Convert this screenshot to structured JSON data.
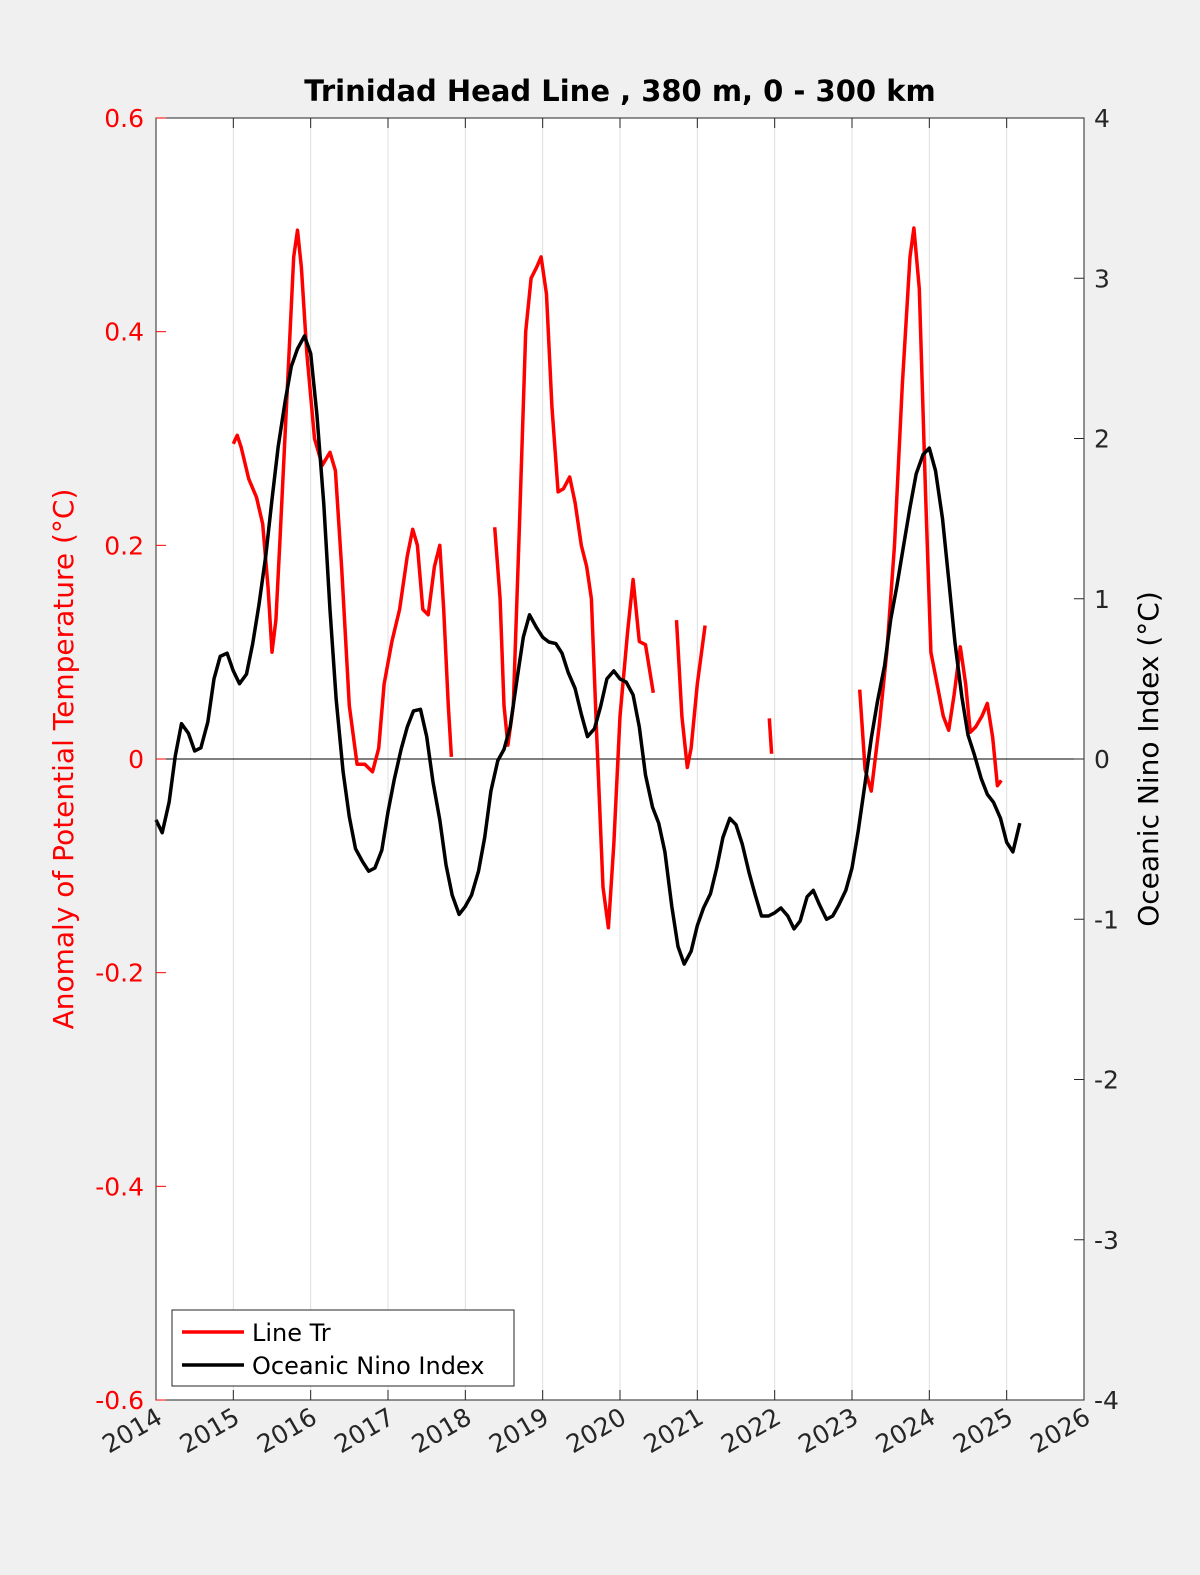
{
  "chart_data": {
    "type": "line",
    "title": "Trinidad Head Line , 380 m, 0 - 300 km",
    "ylabel_left": "Anomaly of Potential Temperature (°C)",
    "ylabel_right": "Oceanic Nino Index (°C)",
    "xlim": [
      2014,
      2026
    ],
    "ylim_left": [
      -0.6,
      0.6
    ],
    "ylim_right": [
      -4,
      4
    ],
    "x_ticks": [
      2014,
      2015,
      2016,
      2017,
      2018,
      2019,
      2020,
      2021,
      2022,
      2023,
      2024,
      2025,
      2026
    ],
    "x_tick_labels": [
      "2014",
      "2015",
      "2016",
      "2017",
      "2018",
      "2019",
      "2020",
      "2021",
      "2022",
      "2023",
      "2024",
      "2025",
      "2026"
    ],
    "y_ticks_left": [
      0.6,
      0.4,
      0.2,
      0,
      -0.2,
      -0.4,
      -0.6
    ],
    "y_tick_labels_left": [
      "0.6",
      "0.4",
      "0.2",
      "0",
      "-0.2",
      "-0.4",
      "-0.6"
    ],
    "y_ticks_right": [
      4,
      3,
      2,
      1,
      0,
      -1,
      -2,
      -3,
      -4
    ],
    "y_tick_labels_right": [
      "4",
      "3",
      "2",
      "1",
      "0",
      "-1",
      "-2",
      "-3",
      "-4"
    ],
    "grid": "vertical",
    "legend_position": "bottom-left",
    "colors": {
      "line_tr": "#ff0000",
      "oni": "#000000",
      "left_axis": "#ff0000",
      "right_axis": "#000000"
    },
    "legend": [
      "Line Tr",
      "Oceanic Nino Index"
    ],
    "series": [
      {
        "name": "Line Tr",
        "axis": "left",
        "segments": [
          [
            [
              2015.0,
              0.295
            ],
            [
              2015.05,
              0.303
            ],
            [
              2015.1,
              0.292
            ],
            [
              2015.2,
              0.262
            ],
            [
              2015.3,
              0.245
            ],
            [
              2015.38,
              0.22
            ],
            [
              2015.45,
              0.16
            ],
            [
              2015.5,
              0.1
            ],
            [
              2015.55,
              0.13
            ],
            [
              2015.6,
              0.2
            ],
            [
              2015.7,
              0.35
            ],
            [
              2015.78,
              0.47
            ],
            [
              2015.83,
              0.495
            ],
            [
              2015.88,
              0.46
            ],
            [
              2015.95,
              0.38
            ],
            [
              2016.05,
              0.3
            ],
            [
              2016.15,
              0.275
            ],
            [
              2016.25,
              0.287
            ],
            [
              2016.32,
              0.27
            ],
            [
              2016.4,
              0.18
            ],
            [
              2016.5,
              0.05
            ],
            [
              2016.6,
              -0.005
            ],
            [
              2016.7,
              -0.005
            ],
            [
              2016.8,
              -0.012
            ],
            [
              2016.88,
              0.01
            ],
            [
              2016.95,
              0.07
            ],
            [
              2017.05,
              0.11
            ],
            [
              2017.15,
              0.14
            ],
            [
              2017.25,
              0.19
            ],
            [
              2017.32,
              0.215
            ],
            [
              2017.38,
              0.2
            ],
            [
              2017.45,
              0.14
            ],
            [
              2017.52,
              0.135
            ],
            [
              2017.6,
              0.18
            ],
            [
              2017.67,
              0.2
            ],
            [
              2017.72,
              0.14
            ],
            [
              2017.78,
              0.05
            ],
            [
              2017.82,
              0.002
            ]
          ],
          [
            [
              2018.38,
              0.217
            ],
            [
              2018.45,
              0.15
            ],
            [
              2018.5,
              0.05
            ],
            [
              2018.55,
              0.013
            ],
            [
              2018.62,
              0.05
            ],
            [
              2018.7,
              0.22
            ],
            [
              2018.78,
              0.4
            ],
            [
              2018.85,
              0.45
            ],
            [
              2018.92,
              0.46
            ],
            [
              2018.98,
              0.47
            ],
            [
              2019.05,
              0.435
            ],
            [
              2019.12,
              0.33
            ],
            [
              2019.2,
              0.25
            ],
            [
              2019.27,
              0.253
            ],
            [
              2019.35,
              0.264
            ],
            [
              2019.42,
              0.24
            ],
            [
              2019.5,
              0.2
            ],
            [
              2019.57,
              0.18
            ],
            [
              2019.63,
              0.15
            ],
            [
              2019.7,
              0.02
            ],
            [
              2019.78,
              -0.12
            ],
            [
              2019.85,
              -0.158
            ],
            [
              2019.92,
              -0.08
            ],
            [
              2020.0,
              0.04
            ],
            [
              2020.1,
              0.12
            ],
            [
              2020.17,
              0.168
            ],
            [
              2020.25,
              0.11
            ],
            [
              2020.33,
              0.107
            ],
            [
              2020.43,
              0.062
            ]
          ],
          [
            [
              2020.73,
              0.13
            ],
            [
              2020.8,
              0.04
            ],
            [
              2020.87,
              -0.008
            ],
            [
              2020.92,
              0.01
            ],
            [
              2021.0,
              0.07
            ],
            [
              2021.1,
              0.125
            ]
          ],
          [
            [
              2021.93,
              0.038
            ],
            [
              2021.96,
              0.005
            ]
          ],
          [
            [
              2023.1,
              0.065
            ],
            [
              2023.17,
              -0.01
            ],
            [
              2023.25,
              -0.03
            ],
            [
              2023.35,
              0.03
            ],
            [
              2023.45,
              0.1
            ],
            [
              2023.55,
              0.2
            ],
            [
              2023.65,
              0.35
            ],
            [
              2023.75,
              0.47
            ],
            [
              2023.8,
              0.497
            ],
            [
              2023.87,
              0.44
            ],
            [
              2023.95,
              0.25
            ],
            [
              2024.02,
              0.1
            ],
            [
              2024.1,
              0.07
            ],
            [
              2024.18,
              0.04
            ],
            [
              2024.25,
              0.027
            ],
            [
              2024.32,
              0.06
            ],
            [
              2024.4,
              0.105
            ],
            [
              2024.47,
              0.07
            ],
            [
              2024.53,
              0.025
            ],
            [
              2024.6,
              0.03
            ],
            [
              2024.68,
              0.04
            ],
            [
              2024.75,
              0.052
            ],
            [
              2024.82,
              0.02
            ],
            [
              2024.88,
              -0.025
            ],
            [
              2024.93,
              -0.02
            ]
          ]
        ]
      },
      {
        "name": "Oceanic Nino Index",
        "axis": "right",
        "segments": [
          [
            [
              2014.0,
              -0.38
            ],
            [
              2014.08,
              -0.46
            ],
            [
              2014.17,
              -0.27
            ],
            [
              2014.25,
              0.02
            ],
            [
              2014.33,
              0.22
            ],
            [
              2014.42,
              0.16
            ],
            [
              2014.5,
              0.05
            ],
            [
              2014.58,
              0.07
            ],
            [
              2014.67,
              0.23
            ],
            [
              2014.75,
              0.5
            ],
            [
              2014.83,
              0.64
            ],
            [
              2014.92,
              0.66
            ],
            [
              2015.0,
              0.55
            ],
            [
              2015.08,
              0.47
            ],
            [
              2015.17,
              0.53
            ],
            [
              2015.25,
              0.72
            ],
            [
              2015.33,
              0.96
            ],
            [
              2015.42,
              1.27
            ],
            [
              2015.5,
              1.62
            ],
            [
              2015.58,
              1.95
            ],
            [
              2015.67,
              2.23
            ],
            [
              2015.75,
              2.45
            ],
            [
              2015.83,
              2.56
            ],
            [
              2015.92,
              2.64
            ],
            [
              2016.0,
              2.53
            ],
            [
              2016.08,
              2.15
            ],
            [
              2016.17,
              1.59
            ],
            [
              2016.25,
              0.93
            ],
            [
              2016.33,
              0.37
            ],
            [
              2016.42,
              -0.08
            ],
            [
              2016.5,
              -0.36
            ],
            [
              2016.58,
              -0.56
            ],
            [
              2016.67,
              -0.64
            ],
            [
              2016.75,
              -0.7
            ],
            [
              2016.83,
              -0.68
            ],
            [
              2016.92,
              -0.57
            ],
            [
              2017.0,
              -0.33
            ],
            [
              2017.08,
              -0.13
            ],
            [
              2017.17,
              0.06
            ],
            [
              2017.25,
              0.2
            ],
            [
              2017.33,
              0.3
            ],
            [
              2017.42,
              0.31
            ],
            [
              2017.5,
              0.14
            ],
            [
              2017.58,
              -0.14
            ],
            [
              2017.67,
              -0.38
            ],
            [
              2017.75,
              -0.66
            ],
            [
              2017.83,
              -0.85
            ],
            [
              2017.92,
              -0.97
            ],
            [
              2018.0,
              -0.92
            ],
            [
              2018.08,
              -0.85
            ],
            [
              2018.17,
              -0.7
            ],
            [
              2018.25,
              -0.49
            ],
            [
              2018.33,
              -0.2
            ],
            [
              2018.42,
              -0.01
            ],
            [
              2018.5,
              0.06
            ],
            [
              2018.58,
              0.2
            ],
            [
              2018.67,
              0.5
            ],
            [
              2018.75,
              0.76
            ],
            [
              2018.83,
              0.9
            ],
            [
              2018.92,
              0.82
            ],
            [
              2019.0,
              0.76
            ],
            [
              2019.08,
              0.73
            ],
            [
              2019.17,
              0.72
            ],
            [
              2019.25,
              0.66
            ],
            [
              2019.33,
              0.54
            ],
            [
              2019.42,
              0.44
            ],
            [
              2019.5,
              0.28
            ],
            [
              2019.58,
              0.14
            ],
            [
              2019.67,
              0.19
            ],
            [
              2019.75,
              0.33
            ],
            [
              2019.83,
              0.5
            ],
            [
              2019.92,
              0.55
            ],
            [
              2020.0,
              0.5
            ],
            [
              2020.08,
              0.48
            ],
            [
              2020.17,
              0.4
            ],
            [
              2020.25,
              0.2
            ],
            [
              2020.33,
              -0.1
            ],
            [
              2020.42,
              -0.3
            ],
            [
              2020.5,
              -0.4
            ],
            [
              2020.58,
              -0.58
            ],
            [
              2020.67,
              -0.92
            ],
            [
              2020.75,
              -1.17
            ],
            [
              2020.83,
              -1.28
            ],
            [
              2020.92,
              -1.2
            ],
            [
              2021.0,
              -1.04
            ],
            [
              2021.08,
              -0.93
            ],
            [
              2021.17,
              -0.84
            ],
            [
              2021.25,
              -0.68
            ],
            [
              2021.33,
              -0.49
            ],
            [
              2021.42,
              -0.37
            ],
            [
              2021.5,
              -0.41
            ],
            [
              2021.58,
              -0.53
            ],
            [
              2021.67,
              -0.71
            ],
            [
              2021.75,
              -0.85
            ],
            [
              2021.83,
              -0.98
            ],
            [
              2021.92,
              -0.98
            ],
            [
              2022.0,
              -0.96
            ],
            [
              2022.08,
              -0.93
            ],
            [
              2022.17,
              -0.98
            ],
            [
              2022.25,
              -1.06
            ],
            [
              2022.33,
              -1.01
            ],
            [
              2022.42,
              -0.86
            ],
            [
              2022.5,
              -0.82
            ],
            [
              2022.58,
              -0.91
            ],
            [
              2022.67,
              -1.0
            ],
            [
              2022.75,
              -0.98
            ],
            [
              2022.83,
              -0.91
            ],
            [
              2022.92,
              -0.82
            ],
            [
              2023.0,
              -0.68
            ],
            [
              2023.08,
              -0.45
            ],
            [
              2023.17,
              -0.15
            ],
            [
              2023.25,
              0.13
            ],
            [
              2023.33,
              0.36
            ],
            [
              2023.42,
              0.58
            ],
            [
              2023.5,
              0.87
            ],
            [
              2023.58,
              1.08
            ],
            [
              2023.67,
              1.34
            ],
            [
              2023.75,
              1.57
            ],
            [
              2023.83,
              1.78
            ],
            [
              2023.92,
              1.9
            ],
            [
              2024.0,
              1.94
            ],
            [
              2024.08,
              1.8
            ],
            [
              2024.17,
              1.5
            ],
            [
              2024.25,
              1.12
            ],
            [
              2024.33,
              0.73
            ],
            [
              2024.42,
              0.39
            ],
            [
              2024.5,
              0.15
            ],
            [
              2024.58,
              0.03
            ],
            [
              2024.67,
              -0.12
            ],
            [
              2024.75,
              -0.22
            ],
            [
              2024.83,
              -0.27
            ],
            [
              2024.92,
              -0.37
            ],
            [
              2025.0,
              -0.52
            ],
            [
              2025.08,
              -0.58
            ],
            [
              2025.17,
              -0.4
            ]
          ]
        ]
      }
    ]
  }
}
